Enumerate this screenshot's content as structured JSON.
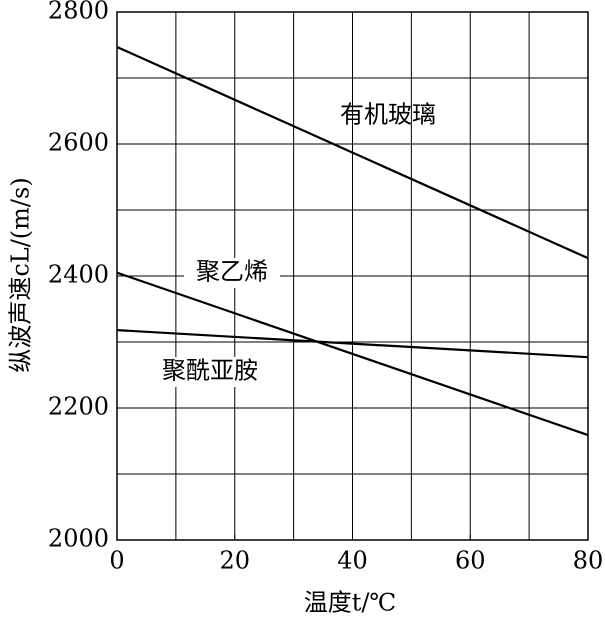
{
  "chart_data": {
    "type": "line",
    "xlabel": "温度t/℃",
    "ylabel": "纵波声速cL/(m/s)",
    "x": [
      0,
      80
    ],
    "series": [
      {
        "name": "有机玻璃",
        "color": "#000000",
        "values": [
          2747,
          2427
        ]
      },
      {
        "name": "聚乙烯",
        "color": "#000000",
        "values": [
          2405,
          2159
        ]
      },
      {
        "name": "聚酰亚胺",
        "color": "#000000",
        "values": [
          2318,
          2277
        ]
      }
    ],
    "xlim": [
      0,
      80
    ],
    "xticks": [
      0,
      20,
      40,
      60,
      80
    ],
    "ylim": [
      2000,
      2800
    ],
    "yticks": [
      2000,
      2200,
      2400,
      2600,
      2800
    ],
    "xgrid": [
      10,
      20,
      30,
      40,
      50,
      60,
      70
    ],
    "ygrid": [
      2100,
      2200,
      2300,
      2400,
      2500,
      2600,
      2700
    ],
    "grid": true
  }
}
